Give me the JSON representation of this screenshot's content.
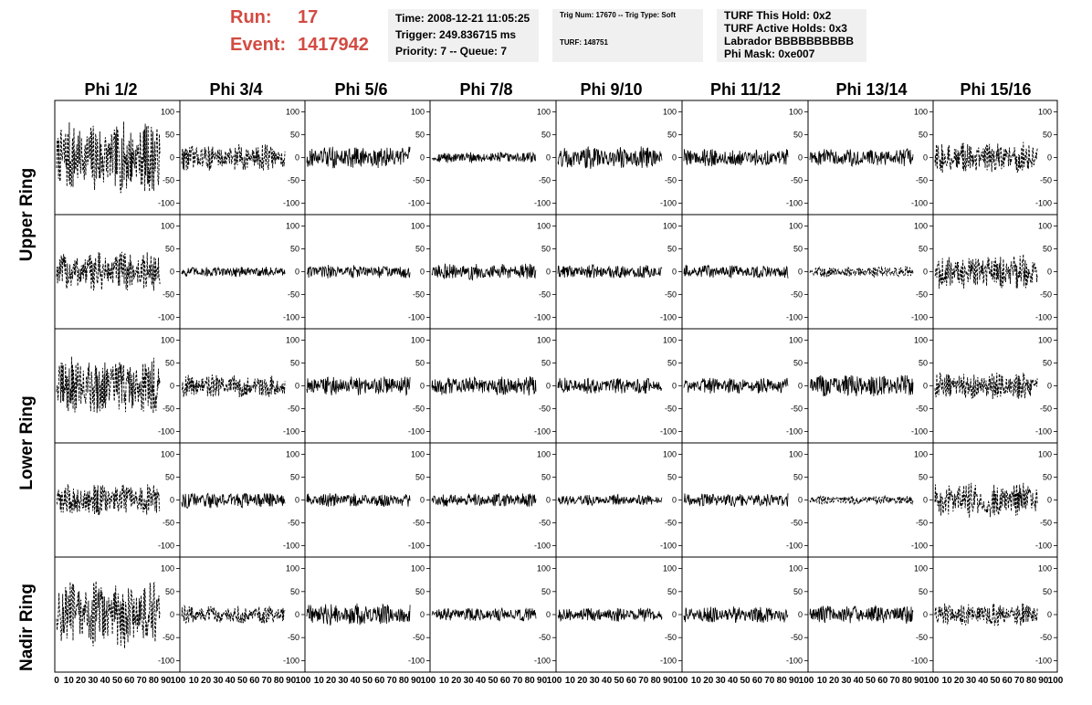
{
  "header": {
    "run_label": "Run:",
    "run_value": "17",
    "event_label": "Event:",
    "event_value": "1417942",
    "time": "Time: 2008-12-21 11:05:25",
    "trigger": "Trigger: 249.836715 ms",
    "priority": "Priority: 7 -- Queue: 7",
    "trig_num": "Trig Num: 17670 -- Trig Type: Soft",
    "turf": "TURF: 148751",
    "turf_hold": "TURF This Hold: 0x2",
    "turf_active": "TURF Active Holds: 0x3",
    "labrador": "Labrador BBBBBBBBBB",
    "phi_mask": "Phi Mask: 0xe007"
  },
  "columns": [
    "Phi 1/2",
    "Phi 3/4",
    "Phi 5/6",
    "Phi 7/8",
    "Phi 9/10",
    "Phi 11/12",
    "Phi 13/14",
    "Phi 15/16"
  ],
  "rings": [
    "Upper Ring",
    "Lower Ring",
    "Nadir Ring"
  ],
  "y_ticks": [
    "100",
    "50",
    "0",
    "-50",
    "-100"
  ],
  "x_tick_labels_first": [
    "0",
    "10",
    "20",
    "30",
    "40",
    "50",
    "60",
    "70",
    "80",
    "90",
    "100"
  ],
  "x_tick_labels_other": [
    "10",
    "20",
    "30",
    "40",
    "50",
    "60",
    "70",
    "80",
    "90",
    "100"
  ],
  "colors": {
    "accent": "#d24b42",
    "panel_bg": "#f0f0f0",
    "trace": "#000000"
  },
  "chart_data": {
    "type": "line",
    "ylim": [
      -125,
      125
    ],
    "xlim": [
      0,
      100
    ],
    "grid": false,
    "panel_amplitudes": [
      [
        80,
        30,
        25,
        12,
        25,
        20,
        20,
        35
      ],
      [
        45,
        12,
        15,
        18,
        15,
        15,
        12,
        40
      ],
      [
        65,
        25,
        22,
        22,
        18,
        18,
        25,
        30
      ],
      [
        35,
        18,
        15,
        15,
        12,
        15,
        10,
        40
      ],
      [
        75,
        20,
        25,
        15,
        15,
        18,
        20,
        25
      ]
    ],
    "panel_dashed": [
      [
        true,
        true,
        false,
        false,
        false,
        false,
        false,
        true
      ],
      [
        true,
        false,
        false,
        false,
        false,
        false,
        true,
        true
      ],
      [
        true,
        true,
        false,
        false,
        false,
        false,
        false,
        true
      ],
      [
        true,
        false,
        false,
        false,
        false,
        false,
        true,
        true
      ],
      [
        true,
        true,
        false,
        false,
        false,
        false,
        false,
        true
      ]
    ]
  }
}
